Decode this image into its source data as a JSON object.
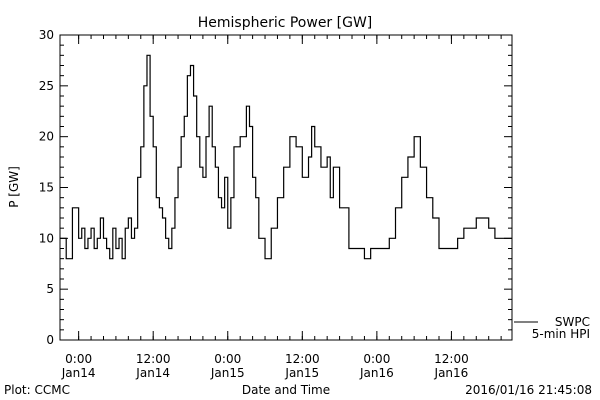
{
  "chart_data": {
    "type": "line",
    "title": "Hemispheric Power [GW]",
    "xlabel": "Date and Time",
    "ylabel": "P [GW]",
    "ylim": [
      0,
      30
    ],
    "yticks": [
      0,
      5,
      10,
      15,
      20,
      25,
      30
    ],
    "xlim": [
      "2016-01-13T21:00",
      "2016-01-16T21:45"
    ],
    "xticks": [
      {
        "t": "2016-01-14T00:00",
        "label1": "0:00",
        "label2": "Jan14"
      },
      {
        "t": "2016-01-14T12:00",
        "label1": "12:00",
        "label2": "Jan14"
      },
      {
        "t": "2016-01-15T00:00",
        "label1": "0:00",
        "label2": "Jan15"
      },
      {
        "t": "2016-01-15T12:00",
        "label1": "12:00",
        "label2": "Jan15"
      },
      {
        "t": "2016-01-16T00:00",
        "label1": "0:00",
        "label2": "Jan16"
      },
      {
        "t": "2016-01-16T12:00",
        "label1": "12:00",
        "label2": "Jan16"
      }
    ],
    "grid": false,
    "legend": [
      {
        "label": "SWPC",
        "style": "line"
      },
      {
        "label": "5-min HPI",
        "style": "none"
      }
    ],
    "series": [
      {
        "name": "SWPC",
        "x": [
          "2016-01-13T21:00",
          "2016-01-13T22:00",
          "2016-01-13T23:00",
          "2016-01-14T00:00",
          "2016-01-14T00:30",
          "2016-01-14T01:00",
          "2016-01-14T01:30",
          "2016-01-14T02:00",
          "2016-01-14T02:30",
          "2016-01-14T03:00",
          "2016-01-14T03:30",
          "2016-01-14T04:00",
          "2016-01-14T04:30",
          "2016-01-14T05:00",
          "2016-01-14T05:30",
          "2016-01-14T06:00",
          "2016-01-14T06:30",
          "2016-01-14T07:00",
          "2016-01-14T07:30",
          "2016-01-14T08:00",
          "2016-01-14T08:30",
          "2016-01-14T09:00",
          "2016-01-14T09:30",
          "2016-01-14T10:00",
          "2016-01-14T10:30",
          "2016-01-14T11:00",
          "2016-01-14T11:30",
          "2016-01-14T12:00",
          "2016-01-14T12:30",
          "2016-01-14T13:00",
          "2016-01-14T13:30",
          "2016-01-14T14:00",
          "2016-01-14T14:30",
          "2016-01-14T15:00",
          "2016-01-14T15:30",
          "2016-01-14T16:00",
          "2016-01-14T16:30",
          "2016-01-14T17:00",
          "2016-01-14T17:30",
          "2016-01-14T18:00",
          "2016-01-14T18:30",
          "2016-01-14T19:00",
          "2016-01-14T19:30",
          "2016-01-14T20:00",
          "2016-01-14T20:30",
          "2016-01-14T21:00",
          "2016-01-14T21:30",
          "2016-01-14T22:00",
          "2016-01-14T22:30",
          "2016-01-14T23:00",
          "2016-01-14T23:30",
          "2016-01-15T00:00",
          "2016-01-15T00:30",
          "2016-01-15T01:00",
          "2016-01-15T02:00",
          "2016-01-15T03:00",
          "2016-01-15T03:30",
          "2016-01-15T04:00",
          "2016-01-15T04:30",
          "2016-01-15T05:00",
          "2016-01-15T06:00",
          "2016-01-15T07:00",
          "2016-01-15T08:00",
          "2016-01-15T09:00",
          "2016-01-15T10:00",
          "2016-01-15T11:00",
          "2016-01-15T12:00",
          "2016-01-15T13:00",
          "2016-01-15T13:30",
          "2016-01-15T14:00",
          "2016-01-15T15:00",
          "2016-01-15T16:00",
          "2016-01-15T16:30",
          "2016-01-15T17:00",
          "2016-01-15T18:00",
          "2016-01-15T19:00",
          "2016-01-15T19:30",
          "2016-01-15T20:00",
          "2016-01-15T21:00",
          "2016-01-15T22:00",
          "2016-01-15T23:00",
          "2016-01-16T00:00",
          "2016-01-16T01:00",
          "2016-01-16T02:00",
          "2016-01-16T03:00",
          "2016-01-16T04:00",
          "2016-01-16T05:00",
          "2016-01-16T06:00",
          "2016-01-16T07:00",
          "2016-01-16T08:00",
          "2016-01-16T09:00",
          "2016-01-16T10:00",
          "2016-01-16T11:00",
          "2016-01-16T12:00",
          "2016-01-16T13:00",
          "2016-01-16T14:00",
          "2016-01-16T15:00",
          "2016-01-16T16:00",
          "2016-01-16T17:00",
          "2016-01-16T18:00",
          "2016-01-16T19:00",
          "2016-01-16T20:00",
          "2016-01-16T21:00",
          "2016-01-16T21:45"
        ],
        "values": [
          10,
          8,
          13,
          10,
          11,
          9,
          10,
          11,
          9,
          10,
          12,
          10,
          9,
          8,
          11,
          9,
          10,
          8,
          11,
          12,
          10,
          11,
          16,
          19,
          25,
          28,
          22,
          19,
          14,
          13,
          12,
          10,
          9,
          11,
          14,
          17,
          20,
          22,
          26,
          27,
          24,
          20,
          17,
          16,
          20,
          23,
          19,
          17,
          14,
          13,
          16,
          11,
          14,
          19,
          20,
          23,
          21,
          16,
          14,
          10,
          8,
          11,
          14,
          17,
          20,
          19,
          16,
          18,
          21,
          19,
          17,
          18,
          14,
          17,
          13,
          13,
          9,
          9,
          9,
          8,
          9,
          9,
          9,
          10,
          13,
          16,
          18,
          20,
          17,
          14,
          12,
          9,
          9,
          9,
          10,
          11,
          11,
          12,
          12,
          11,
          10,
          10,
          10,
          10
        ]
      }
    ]
  },
  "footer": {
    "left": "Plot: CCMC",
    "right": "2016/01/16 21:45:08"
  }
}
